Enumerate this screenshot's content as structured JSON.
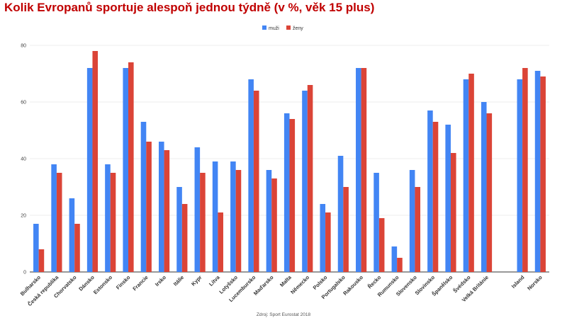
{
  "chart_data": {
    "type": "bar",
    "title": "Kolik Evropanů sportuje alespoň jednou týdně (v %, věk 15 plus)",
    "source": "Zdroj: Sport Eurostat 2018",
    "xlabel": "",
    "ylabel": "",
    "ylim": [
      0,
      80
    ],
    "yticks": [
      0,
      20,
      40,
      60,
      80
    ],
    "grid": true,
    "legend_position": "top-center",
    "categories": [
      "Bulharsko",
      "Česká republika",
      "Chorvatsko",
      "Dánsko",
      "Estonsko",
      "Finsko",
      "Francie",
      "Irsko",
      "Itálie",
      "Kypr",
      "Litva",
      "Lotyšsko",
      "Lucembursko",
      "Maďarsko",
      "Malta",
      "Německo",
      "Polsko",
      "Portugalsko",
      "Rakousko",
      "Řecko",
      "Rumunsko",
      "Slovensko",
      "Slovinsko",
      "Španělsko",
      "Švédsko",
      "Velká Británie",
      "",
      "Island",
      "Norsko"
    ],
    "series": [
      {
        "name": "muži",
        "color": "#4285f4",
        "values": [
          17,
          38,
          26,
          72,
          38,
          72,
          53,
          46,
          30,
          44,
          39,
          39,
          68,
          36,
          56,
          64,
          24,
          41,
          72,
          35,
          9,
          36,
          57,
          52,
          68,
          60,
          null,
          68,
          71
        ]
      },
      {
        "name": "ženy",
        "color": "#db4437",
        "values": [
          8,
          35,
          17,
          78,
          35,
          74,
          46,
          43,
          24,
          35,
          21,
          36,
          64,
          33,
          54,
          66,
          21,
          30,
          72,
          19,
          5,
          30,
          53,
          42,
          70,
          56,
          null,
          72,
          69
        ]
      }
    ]
  }
}
